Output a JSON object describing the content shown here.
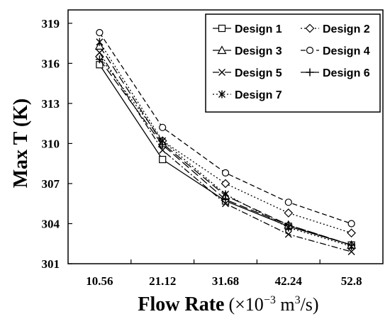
{
  "chart_data": {
    "type": "line",
    "xlabel_main": "Flow Rate",
    "xlabel_unit_prefix": "(×10",
    "xlabel_unit_exp": "−3",
    "xlabel_unit_mid": " m",
    "xlabel_unit_exp2": "3",
    "xlabel_unit_suffix": "/s)",
    "ylabel": "Max T (K)",
    "categories": [
      "10.56",
      "21.12",
      "31.68",
      "42.24",
      "52.8"
    ],
    "ylim": [
      301,
      320
    ],
    "yticks": [
      301,
      304,
      307,
      310,
      313,
      316,
      319
    ],
    "legend_position": "top-right",
    "series": [
      {
        "name": "Design 1",
        "values": [
          315.9,
          308.8,
          305.7,
          303.8,
          302.4
        ],
        "marker": "square",
        "dash": "solid"
      },
      {
        "name": "Design 2",
        "values": [
          316.5,
          310.2,
          307.0,
          304.8,
          303.3
        ],
        "marker": "diamond",
        "dash": "dot"
      },
      {
        "name": "Design 3",
        "values": [
          317.3,
          310.0,
          306.1,
          303.9,
          302.4
        ],
        "marker": "triangle",
        "dash": "longdash"
      },
      {
        "name": "Design 4",
        "values": [
          318.3,
          311.2,
          307.8,
          305.6,
          304.0
        ],
        "marker": "circle",
        "dash": "dash"
      },
      {
        "name": "Design 5",
        "values": [
          316.8,
          309.5,
          305.5,
          303.2,
          301.9
        ],
        "marker": "x",
        "dash": "dashdot"
      },
      {
        "name": "Design 6",
        "values": [
          316.3,
          309.9,
          305.8,
          303.9,
          302.4
        ],
        "marker": "plus",
        "dash": "longdash"
      },
      {
        "name": "Design 7",
        "values": [
          317.6,
          310.2,
          306.2,
          303.7,
          302.3
        ],
        "marker": "star",
        "dash": "dot"
      }
    ]
  }
}
